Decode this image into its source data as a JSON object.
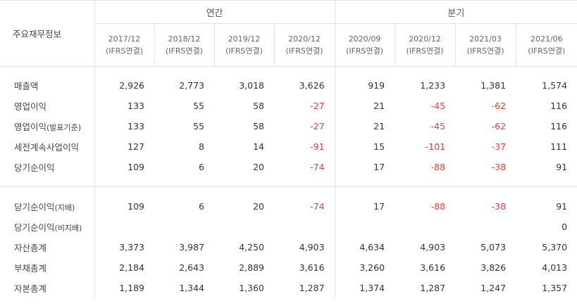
{
  "header": {
    "row_label_title": "주요재무정보",
    "group_annual": "연간",
    "group_quarterly": "분기",
    "periods": [
      {
        "date": "2017/12",
        "basis": "(IFRS연결)"
      },
      {
        "date": "2018/12",
        "basis": "(IFRS연결)"
      },
      {
        "date": "2019/12",
        "basis": "(IFRS연결)"
      },
      {
        "date": "2020/12",
        "basis": "(IFRS연결)"
      },
      {
        "date": "2020/09",
        "basis": "(IFRS연결)"
      },
      {
        "date": "2020/12",
        "basis": "(IFRS연결)"
      },
      {
        "date": "2021/03",
        "basis": "(IFRS연결)"
      },
      {
        "date": "2021/06",
        "basis": "(IFRS연결)"
      }
    ]
  },
  "rows": [
    {
      "label": "매출액",
      "values": [
        "2,926",
        "2,773",
        "3,018",
        "3,626",
        "919",
        "1,233",
        "1,381",
        "1,574"
      ]
    },
    {
      "label": "영업이익",
      "values": [
        "133",
        "55",
        "58",
        "-27",
        "21",
        "-45",
        "-62",
        "116"
      ]
    },
    {
      "label": "영업이익",
      "label_suffix": "(발표기준)",
      "values": [
        "133",
        "55",
        "58",
        "-27",
        "21",
        "-45",
        "-62",
        "116"
      ]
    },
    {
      "label": "세전계속사업이익",
      "values": [
        "127",
        "8",
        "14",
        "-91",
        "15",
        "-101",
        "-37",
        "111"
      ]
    },
    {
      "label": "당기순이익",
      "values": [
        "109",
        "6",
        "20",
        "-74",
        "17",
        "-88",
        "-38",
        "91"
      ]
    },
    {
      "label": "당기순이익",
      "label_suffix": "(지배)",
      "values": [
        "109",
        "6",
        "20",
        "-74",
        "17",
        "-88",
        "-38",
        "91"
      ]
    },
    {
      "label": "당기순이익",
      "label_suffix": "(비지배)",
      "values": [
        "",
        "",
        "",
        "",
        "",
        "",
        "",
        "0"
      ]
    },
    {
      "label": "자산총계",
      "values": [
        "3,373",
        "3,987",
        "4,250",
        "4,903",
        "4,634",
        "4,903",
        "5,073",
        "5,370"
      ]
    },
    {
      "label": "부채총계",
      "values": [
        "2,184",
        "2,643",
        "2,889",
        "3,616",
        "3,260",
        "3,616",
        "3,826",
        "4,013"
      ]
    },
    {
      "label": "자본총계",
      "values": [
        "1,189",
        "1,344",
        "1,360",
        "1,287",
        "1,374",
        "1,287",
        "1,247",
        "1,357"
      ]
    }
  ],
  "colors": {
    "negative": "#e0403c",
    "border": "#e3e3e3",
    "text": "#333333"
  }
}
